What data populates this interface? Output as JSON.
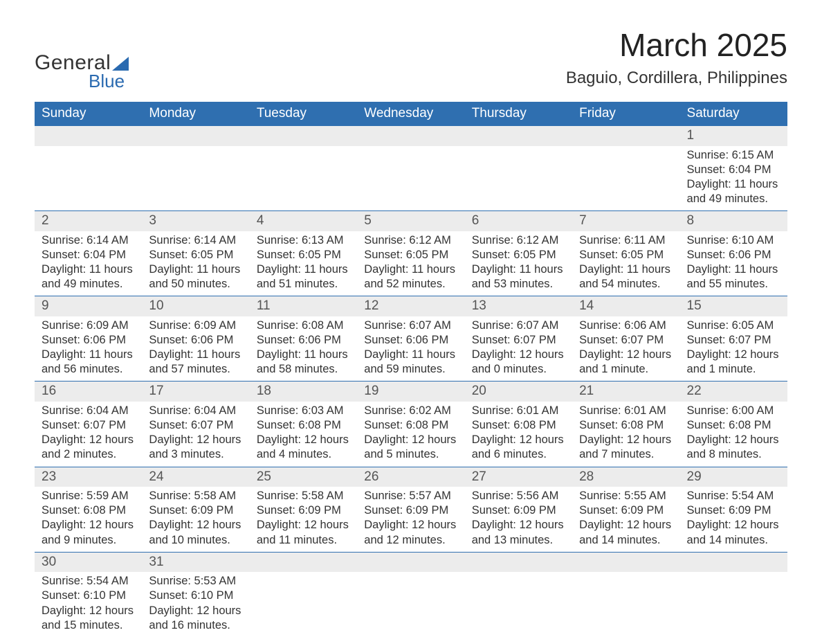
{
  "brand": {
    "general": "General",
    "blue": "Blue",
    "logo_color": "#2a6ab0"
  },
  "title": "March 2025",
  "location": "Baguio, Cordillera, Philippines",
  "colors": {
    "header_bg": "#2f6fb0",
    "header_text": "#ffffff",
    "daynum_bg": "#ececec",
    "border": "#2f6fb0",
    "text": "#333333"
  },
  "day_headers": [
    "Sunday",
    "Monday",
    "Tuesday",
    "Wednesday",
    "Thursday",
    "Friday",
    "Saturday"
  ],
  "weeks": [
    [
      null,
      null,
      null,
      null,
      null,
      null,
      {
        "day": "1",
        "sunrise": "Sunrise: 6:15 AM",
        "sunset": "Sunset: 6:04 PM",
        "daylight1": "Daylight: 11 hours",
        "daylight2": "and 49 minutes."
      }
    ],
    [
      {
        "day": "2",
        "sunrise": "Sunrise: 6:14 AM",
        "sunset": "Sunset: 6:04 PM",
        "daylight1": "Daylight: 11 hours",
        "daylight2": "and 49 minutes."
      },
      {
        "day": "3",
        "sunrise": "Sunrise: 6:14 AM",
        "sunset": "Sunset: 6:05 PM",
        "daylight1": "Daylight: 11 hours",
        "daylight2": "and 50 minutes."
      },
      {
        "day": "4",
        "sunrise": "Sunrise: 6:13 AM",
        "sunset": "Sunset: 6:05 PM",
        "daylight1": "Daylight: 11 hours",
        "daylight2": "and 51 minutes."
      },
      {
        "day": "5",
        "sunrise": "Sunrise: 6:12 AM",
        "sunset": "Sunset: 6:05 PM",
        "daylight1": "Daylight: 11 hours",
        "daylight2": "and 52 minutes."
      },
      {
        "day": "6",
        "sunrise": "Sunrise: 6:12 AM",
        "sunset": "Sunset: 6:05 PM",
        "daylight1": "Daylight: 11 hours",
        "daylight2": "and 53 minutes."
      },
      {
        "day": "7",
        "sunrise": "Sunrise: 6:11 AM",
        "sunset": "Sunset: 6:05 PM",
        "daylight1": "Daylight: 11 hours",
        "daylight2": "and 54 minutes."
      },
      {
        "day": "8",
        "sunrise": "Sunrise: 6:10 AM",
        "sunset": "Sunset: 6:06 PM",
        "daylight1": "Daylight: 11 hours",
        "daylight2": "and 55 minutes."
      }
    ],
    [
      {
        "day": "9",
        "sunrise": "Sunrise: 6:09 AM",
        "sunset": "Sunset: 6:06 PM",
        "daylight1": "Daylight: 11 hours",
        "daylight2": "and 56 minutes."
      },
      {
        "day": "10",
        "sunrise": "Sunrise: 6:09 AM",
        "sunset": "Sunset: 6:06 PM",
        "daylight1": "Daylight: 11 hours",
        "daylight2": "and 57 minutes."
      },
      {
        "day": "11",
        "sunrise": "Sunrise: 6:08 AM",
        "sunset": "Sunset: 6:06 PM",
        "daylight1": "Daylight: 11 hours",
        "daylight2": "and 58 minutes."
      },
      {
        "day": "12",
        "sunrise": "Sunrise: 6:07 AM",
        "sunset": "Sunset: 6:06 PM",
        "daylight1": "Daylight: 11 hours",
        "daylight2": "and 59 minutes."
      },
      {
        "day": "13",
        "sunrise": "Sunrise: 6:07 AM",
        "sunset": "Sunset: 6:07 PM",
        "daylight1": "Daylight: 12 hours",
        "daylight2": "and 0 minutes."
      },
      {
        "day": "14",
        "sunrise": "Sunrise: 6:06 AM",
        "sunset": "Sunset: 6:07 PM",
        "daylight1": "Daylight: 12 hours",
        "daylight2": "and 1 minute."
      },
      {
        "day": "15",
        "sunrise": "Sunrise: 6:05 AM",
        "sunset": "Sunset: 6:07 PM",
        "daylight1": "Daylight: 12 hours",
        "daylight2": "and 1 minute."
      }
    ],
    [
      {
        "day": "16",
        "sunrise": "Sunrise: 6:04 AM",
        "sunset": "Sunset: 6:07 PM",
        "daylight1": "Daylight: 12 hours",
        "daylight2": "and 2 minutes."
      },
      {
        "day": "17",
        "sunrise": "Sunrise: 6:04 AM",
        "sunset": "Sunset: 6:07 PM",
        "daylight1": "Daylight: 12 hours",
        "daylight2": "and 3 minutes."
      },
      {
        "day": "18",
        "sunrise": "Sunrise: 6:03 AM",
        "sunset": "Sunset: 6:08 PM",
        "daylight1": "Daylight: 12 hours",
        "daylight2": "and 4 minutes."
      },
      {
        "day": "19",
        "sunrise": "Sunrise: 6:02 AM",
        "sunset": "Sunset: 6:08 PM",
        "daylight1": "Daylight: 12 hours",
        "daylight2": "and 5 minutes."
      },
      {
        "day": "20",
        "sunrise": "Sunrise: 6:01 AM",
        "sunset": "Sunset: 6:08 PM",
        "daylight1": "Daylight: 12 hours",
        "daylight2": "and 6 minutes."
      },
      {
        "day": "21",
        "sunrise": "Sunrise: 6:01 AM",
        "sunset": "Sunset: 6:08 PM",
        "daylight1": "Daylight: 12 hours",
        "daylight2": "and 7 minutes."
      },
      {
        "day": "22",
        "sunrise": "Sunrise: 6:00 AM",
        "sunset": "Sunset: 6:08 PM",
        "daylight1": "Daylight: 12 hours",
        "daylight2": "and 8 minutes."
      }
    ],
    [
      {
        "day": "23",
        "sunrise": "Sunrise: 5:59 AM",
        "sunset": "Sunset: 6:08 PM",
        "daylight1": "Daylight: 12 hours",
        "daylight2": "and 9 minutes."
      },
      {
        "day": "24",
        "sunrise": "Sunrise: 5:58 AM",
        "sunset": "Sunset: 6:09 PM",
        "daylight1": "Daylight: 12 hours",
        "daylight2": "and 10 minutes."
      },
      {
        "day": "25",
        "sunrise": "Sunrise: 5:58 AM",
        "sunset": "Sunset: 6:09 PM",
        "daylight1": "Daylight: 12 hours",
        "daylight2": "and 11 minutes."
      },
      {
        "day": "26",
        "sunrise": "Sunrise: 5:57 AM",
        "sunset": "Sunset: 6:09 PM",
        "daylight1": "Daylight: 12 hours",
        "daylight2": "and 12 minutes."
      },
      {
        "day": "27",
        "sunrise": "Sunrise: 5:56 AM",
        "sunset": "Sunset: 6:09 PM",
        "daylight1": "Daylight: 12 hours",
        "daylight2": "and 13 minutes."
      },
      {
        "day": "28",
        "sunrise": "Sunrise: 5:55 AM",
        "sunset": "Sunset: 6:09 PM",
        "daylight1": "Daylight: 12 hours",
        "daylight2": "and 14 minutes."
      },
      {
        "day": "29",
        "sunrise": "Sunrise: 5:54 AM",
        "sunset": "Sunset: 6:09 PM",
        "daylight1": "Daylight: 12 hours",
        "daylight2": "and 14 minutes."
      }
    ],
    [
      {
        "day": "30",
        "sunrise": "Sunrise: 5:54 AM",
        "sunset": "Sunset: 6:10 PM",
        "daylight1": "Daylight: 12 hours",
        "daylight2": "and 15 minutes."
      },
      {
        "day": "31",
        "sunrise": "Sunrise: 5:53 AM",
        "sunset": "Sunset: 6:10 PM",
        "daylight1": "Daylight: 12 hours",
        "daylight2": "and 16 minutes."
      },
      null,
      null,
      null,
      null,
      null
    ]
  ]
}
